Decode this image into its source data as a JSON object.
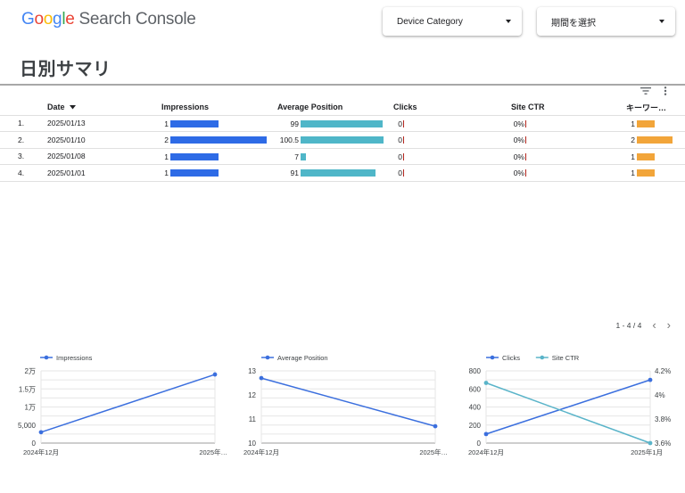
{
  "header": {
    "logo_google": "Google",
    "logo_product": "Search Console",
    "device_filter_label": "Device Category",
    "period_filter_label": "期間を選択"
  },
  "page": {
    "title": "日別サマリ"
  },
  "table": {
    "columns": [
      "Date",
      "Impressions",
      "Average Position",
      "Clicks",
      "Site CTR",
      "キーワー…"
    ],
    "rows": [
      {
        "index": "1.",
        "date": "2025/01/13",
        "impressions": "1",
        "impressions_value": 1,
        "average_position": "99",
        "average_position_value": 99,
        "clicks": "0",
        "site_ctr": "0%",
        "keywords": "1",
        "keywords_value": 1
      },
      {
        "index": "2.",
        "date": "2025/01/10",
        "impressions": "2",
        "impressions_value": 2,
        "average_position": "100.5",
        "average_position_value": 100.5,
        "clicks": "0",
        "site_ctr": "0%",
        "keywords": "2",
        "keywords_value": 2
      },
      {
        "index": "3.",
        "date": "2025/01/08",
        "impressions": "1",
        "impressions_value": 1,
        "average_position": "7",
        "average_position_value": 7,
        "clicks": "0",
        "site_ctr": "0%",
        "keywords": "1",
        "keywords_value": 1
      },
      {
        "index": "4.",
        "date": "2025/01/01",
        "impressions": "1",
        "impressions_value": 1,
        "average_position": "91",
        "average_position_value": 91,
        "clicks": "0",
        "site_ctr": "0%",
        "keywords": "1",
        "keywords_value": 1
      }
    ],
    "pagination": "1 - 4 / 4"
  },
  "colors": {
    "impressions_bar": "#2e6be6",
    "position_bar": "#4fb6c8",
    "keywords_bar": "#f2a53a",
    "clicks_tick": "#b3261e",
    "line_blue": "#3b6fde",
    "line_teal": "#5ab4c9"
  },
  "chart_data": [
    {
      "type": "line",
      "x": [
        "2024年12月",
        "2025年…"
      ],
      "series": [
        {
          "name": "Impressions",
          "values": [
            3000,
            19000
          ]
        }
      ],
      "yticks": [
        "0",
        "5,000",
        "1万",
        "1.5万",
        "2万"
      ],
      "ylim": [
        0,
        20000
      ],
      "grid": true,
      "legend": "top-left"
    },
    {
      "type": "line",
      "x": [
        "2024年12月",
        "2025年…"
      ],
      "series": [
        {
          "name": "Average Position",
          "values": [
            12.7,
            10.7
          ]
        }
      ],
      "yticks": [
        "10",
        "11",
        "12",
        "13"
      ],
      "ylim": [
        10,
        13
      ],
      "grid": true,
      "legend": "top-left"
    },
    {
      "type": "line",
      "x": [
        "2024年12月",
        "2025年1月"
      ],
      "series": [
        {
          "name": "Clicks",
          "values": [
            100,
            700
          ],
          "axis": "left"
        },
        {
          "name": "Site CTR",
          "values": [
            4.1,
            3.6
          ],
          "axis": "right"
        }
      ],
      "yticks": [
        "0",
        "200",
        "400",
        "600",
        "800"
      ],
      "ylim": [
        0,
        800
      ],
      "y2ticks": [
        "3.6%",
        "3.8%",
        "4%",
        "4.2%"
      ],
      "y2lim": [
        3.6,
        4.2
      ],
      "grid": true,
      "legend": "top-left"
    }
  ]
}
